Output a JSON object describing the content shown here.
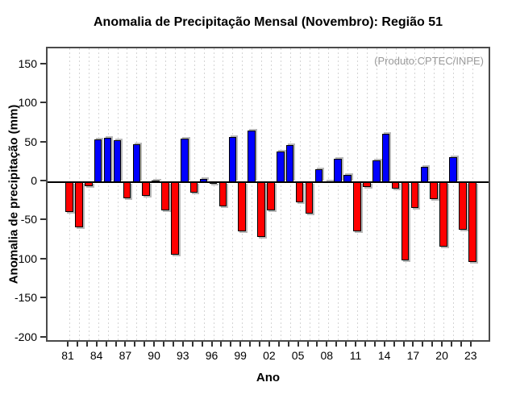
{
  "annotation": "(Produto:CPTEC/INPE)",
  "chart_data": {
    "type": "bar",
    "title": "Anomalia de Precipitação Mensal (Novembro): Região 51",
    "xlabel": "Ano",
    "ylabel": "Anomalia de precipitação (mm)",
    "source_note": "(Produto:CPTEC/INPE)",
    "ylim": [
      -200,
      150
    ],
    "yticks": [
      150,
      100,
      50,
      0,
      -50,
      -100,
      -150,
      -200
    ],
    "grid": "vertical-dashed-per-year",
    "legend": false,
    "bar_colors": {
      "positive": "#0000ff",
      "negative": "#ff0000"
    },
    "x": [
      1981,
      1982,
      1983,
      1984,
      1985,
      1986,
      1987,
      1988,
      1989,
      1990,
      1991,
      1992,
      1993,
      1994,
      1995,
      1996,
      1997,
      1998,
      1999,
      2000,
      2001,
      2002,
      2003,
      2004,
      2005,
      2006,
      2007,
      2008,
      2009,
      2010,
      2011,
      2012,
      2013,
      2014,
      2015,
      2016,
      2017,
      2018,
      2019,
      2020,
      2021,
      2022,
      2023
    ],
    "values": [
      -38,
      -58,
      -5,
      55,
      57,
      54,
      -21,
      48,
      -18,
      2,
      -36,
      -93,
      56,
      -13,
      4,
      -1,
      -31,
      58,
      -63,
      66,
      -70,
      -36,
      39,
      47,
      -26,
      -40,
      16,
      1,
      30,
      9,
      -63,
      -6,
      28,
      62,
      -8,
      -100,
      -33,
      20,
      -22,
      -83,
      32,
      -61,
      -102
    ],
    "xtick_every": 3,
    "xtick_labels": [
      "81",
      "84",
      "87",
      "90",
      "93",
      "96",
      "99",
      "02",
      "05",
      "08",
      "11",
      "14",
      "17",
      "20",
      "23"
    ]
  }
}
